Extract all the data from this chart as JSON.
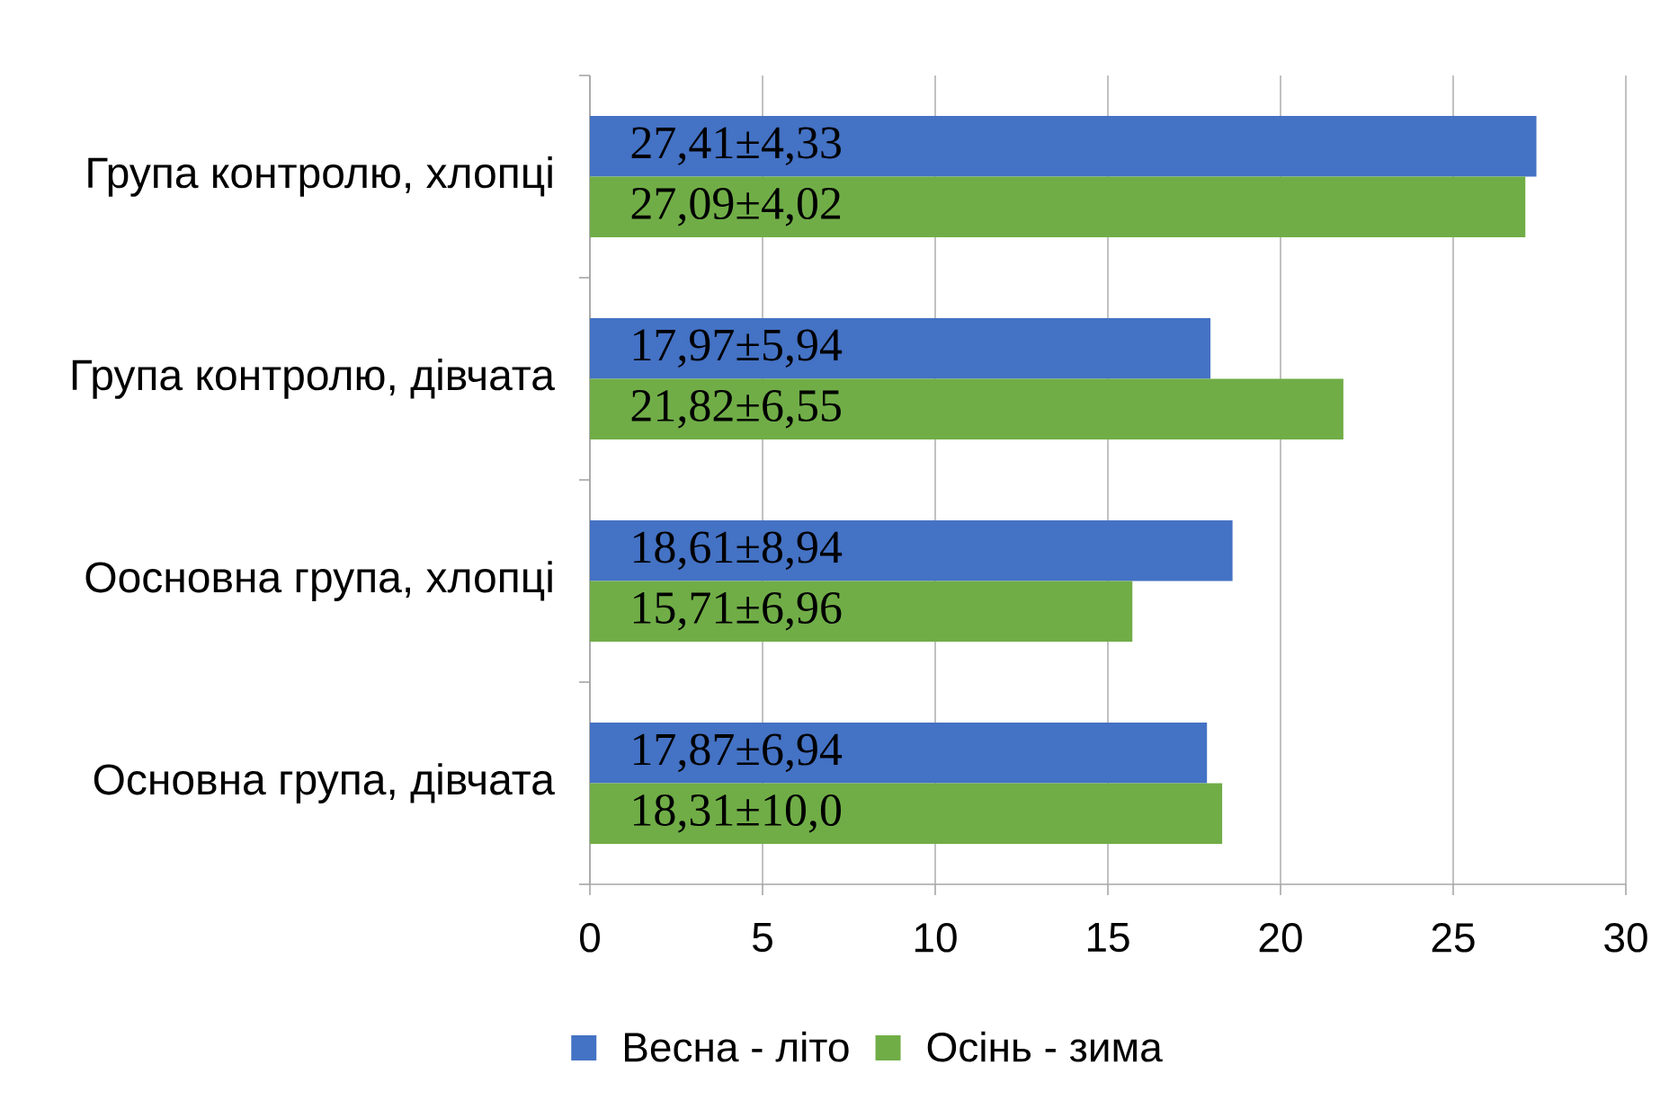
{
  "chart_data": {
    "type": "bar",
    "orientation": "horizontal",
    "categories": [
      "Група контролю, хлопці",
      "Група контролю, дівчата",
      "Оосновна група, хлопці",
      "Основна група, дівчата"
    ],
    "series": [
      {
        "name": "Весна - літо",
        "color": "#4472c4",
        "values": [
          27.41,
          17.97,
          18.61,
          17.87
        ],
        "value_labels": [
          "27,41±4,33",
          "17,97±5,94",
          "18,61±8,94",
          "17,87±6,94"
        ]
      },
      {
        "name": "Осінь - зима",
        "color": "#70ad47",
        "values": [
          27.09,
          21.82,
          15.71,
          18.31
        ],
        "value_labels": [
          "27,09±4,02",
          "21,82±6,55",
          "15,71±6,96",
          "18,31±10,0"
        ]
      }
    ],
    "xlim": [
      0,
      30
    ],
    "xticks": [
      0,
      5,
      10,
      15,
      20,
      25,
      30
    ],
    "grid": "x",
    "legend": "bottom"
  }
}
